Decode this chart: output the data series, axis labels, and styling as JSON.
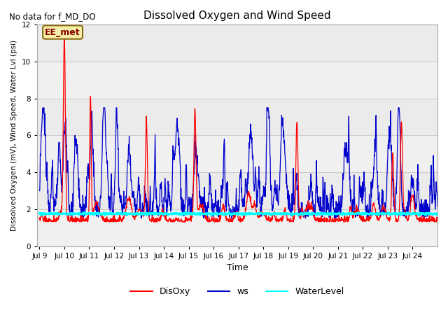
{
  "title": "Dissolved Oxygen and Wind Speed",
  "no_data_text": "No data for f_MD_DO",
  "annotation_text": "EE_met",
  "xlabel": "Time",
  "ylabel": "Dissolved Oxygen (mV), Wind Speed, Water Lvl (psi)",
  "ylim": [
    0,
    12
  ],
  "yticks": [
    0,
    2,
    4,
    6,
    8,
    10,
    12
  ],
  "xtick_labels": [
    "Jul 9",
    "Jul 10",
    "Jul 11",
    "Jul 12",
    "Jul 13",
    "Jul 14",
    "Jul 15",
    "Jul 16",
    "Jul 17",
    "Jul 18",
    "Jul 19",
    "Jul 20",
    "Jul 21",
    "Jul 22",
    "Jul 23",
    "Jul 24"
  ],
  "color_disoxy": "#ff0000",
  "color_ws": "#0000cc",
  "color_waterlevel": "#00ffff",
  "bg_color": "#ebebeb",
  "stripe_color": "#d8d8d8",
  "legend_labels": [
    "DisOxy",
    "ws",
    "WaterLevel"
  ],
  "waterlevel_value": 1.75
}
